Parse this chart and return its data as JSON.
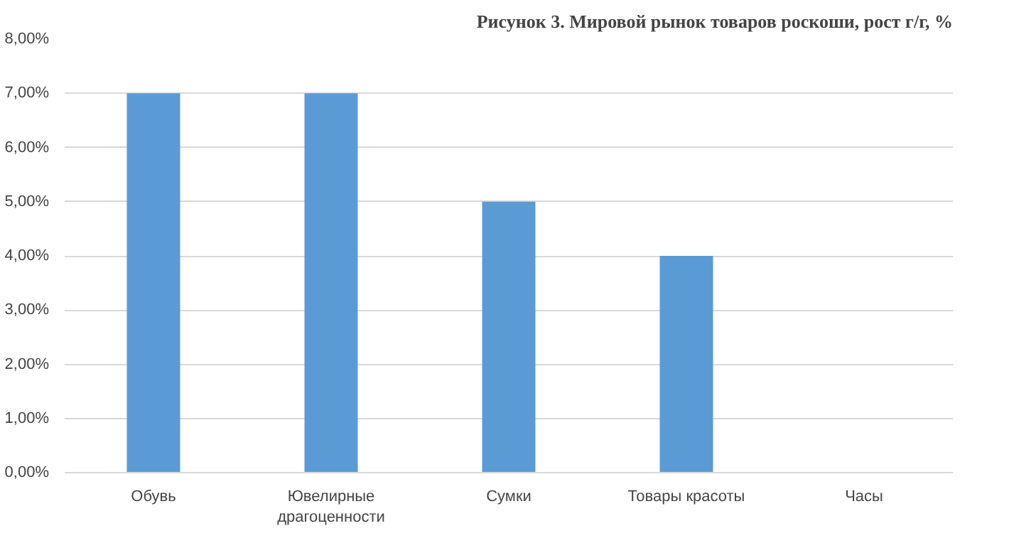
{
  "chart_data": {
    "type": "bar",
    "title": "Рисунок 3. Мировой рынок товаров роскоши, рост г/г, %",
    "categories": [
      "Обувь",
      "Ювелирные драгоценности",
      "Сумки",
      "Товары красоты",
      "Часы"
    ],
    "values": [
      7,
      7,
      5,
      4,
      0
    ],
    "color": "#5b9bd5",
    "ylim": [
      0,
      8
    ],
    "yticks": [
      {
        "value": 0,
        "label": "0,00%"
      },
      {
        "value": 1,
        "label": "1,00%"
      },
      {
        "value": 2,
        "label": "2,00%"
      },
      {
        "value": 3,
        "label": "3,00%"
      },
      {
        "value": 4,
        "label": "4,00%"
      },
      {
        "value": 5,
        "label": "5,00%"
      },
      {
        "value": 6,
        "label": "6,00%"
      },
      {
        "value": 7,
        "label": "7,00%"
      },
      {
        "value": 8,
        "label": "8,00%"
      }
    ],
    "grid": "y"
  }
}
